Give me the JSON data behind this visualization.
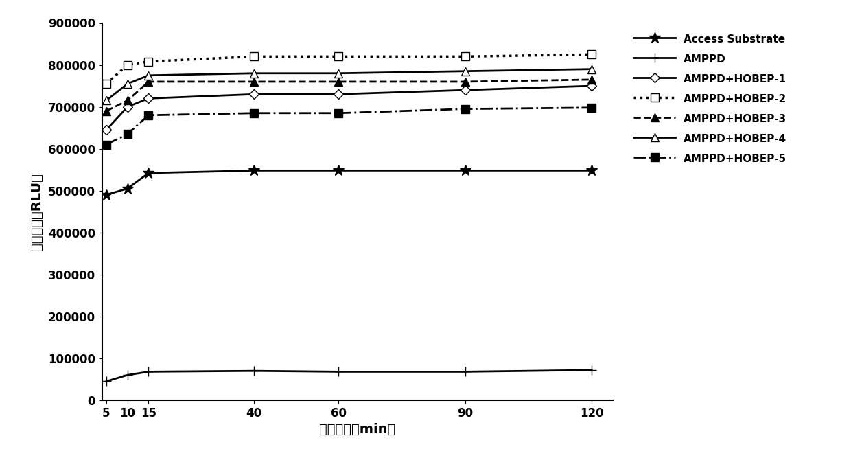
{
  "x": [
    5,
    10,
    15,
    40,
    60,
    90,
    120
  ],
  "series": {
    "Access Substrate": [
      490000,
      505000,
      542000,
      548000,
      548000,
      548000,
      548000
    ],
    "AMPPD": [
      45000,
      60000,
      68000,
      70000,
      68000,
      68000,
      72000
    ],
    "AMPPD+HOBEP-1": [
      645000,
      700000,
      720000,
      730000,
      730000,
      740000,
      750000
    ],
    "AMPPD+HOBEP-2": [
      755000,
      800000,
      808000,
      820000,
      820000,
      820000,
      825000
    ],
    "AMPPD+HOBEP-3": [
      690000,
      715000,
      760000,
      760000,
      760000,
      760000,
      765000
    ],
    "AMPPD+HOBEP-4": [
      715000,
      755000,
      775000,
      780000,
      780000,
      785000,
      790000
    ],
    "AMPPD+HOBEP-5": [
      610000,
      635000,
      680000,
      685000,
      685000,
      695000,
      698000
    ]
  },
  "styles": {
    "Access Substrate": {
      "linestyle": "-",
      "marker": "*",
      "linewidth": 2.0,
      "markersize": 12
    },
    "AMPPD": {
      "linestyle": "-",
      "marker": "+",
      "linewidth": 2.0,
      "markersize": 10
    },
    "AMPPD+HOBEP-1": {
      "linestyle": "-",
      "marker": "D",
      "linewidth": 2.0,
      "markersize": 7
    },
    "AMPPD+HOBEP-2": {
      "linestyle": ":",
      "marker": "s",
      "linewidth": 2.5,
      "markersize": 9
    },
    "AMPPD+HOBEP-3": {
      "linestyle": "--",
      "marker": "^",
      "linewidth": 2.0,
      "markersize": 8
    },
    "AMPPD+HOBEP-4": {
      "linestyle": "-",
      "marker": "^",
      "linewidth": 2.0,
      "markersize": 8
    },
    "AMPPD+HOBEP-5": {
      "linestyle": "-.",
      "marker": "s",
      "linewidth": 2.0,
      "markersize": 9
    }
  },
  "markerfacecolors": {
    "Access Substrate": "black",
    "AMPPD": "black",
    "AMPPD+HOBEP-1": "white",
    "AMPPD+HOBEP-2": "white",
    "AMPPD+HOBEP-3": "black",
    "AMPPD+HOBEP-4": "white",
    "AMPPD+HOBEP-5": "black"
  },
  "xlabel": "反应时间（min）",
  "ylabel": "发光强度（RLU）",
  "ylim": [
    0,
    900000
  ],
  "yticks": [
    0,
    100000,
    200000,
    300000,
    400000,
    500000,
    600000,
    700000,
    800000,
    900000
  ],
  "xticks": [
    5,
    10,
    15,
    40,
    60,
    90,
    120
  ],
  "color": "black",
  "legend_fontsize": 11,
  "axis_label_fontsize": 14,
  "tick_fontsize": 12,
  "figure_facecolor": "white"
}
